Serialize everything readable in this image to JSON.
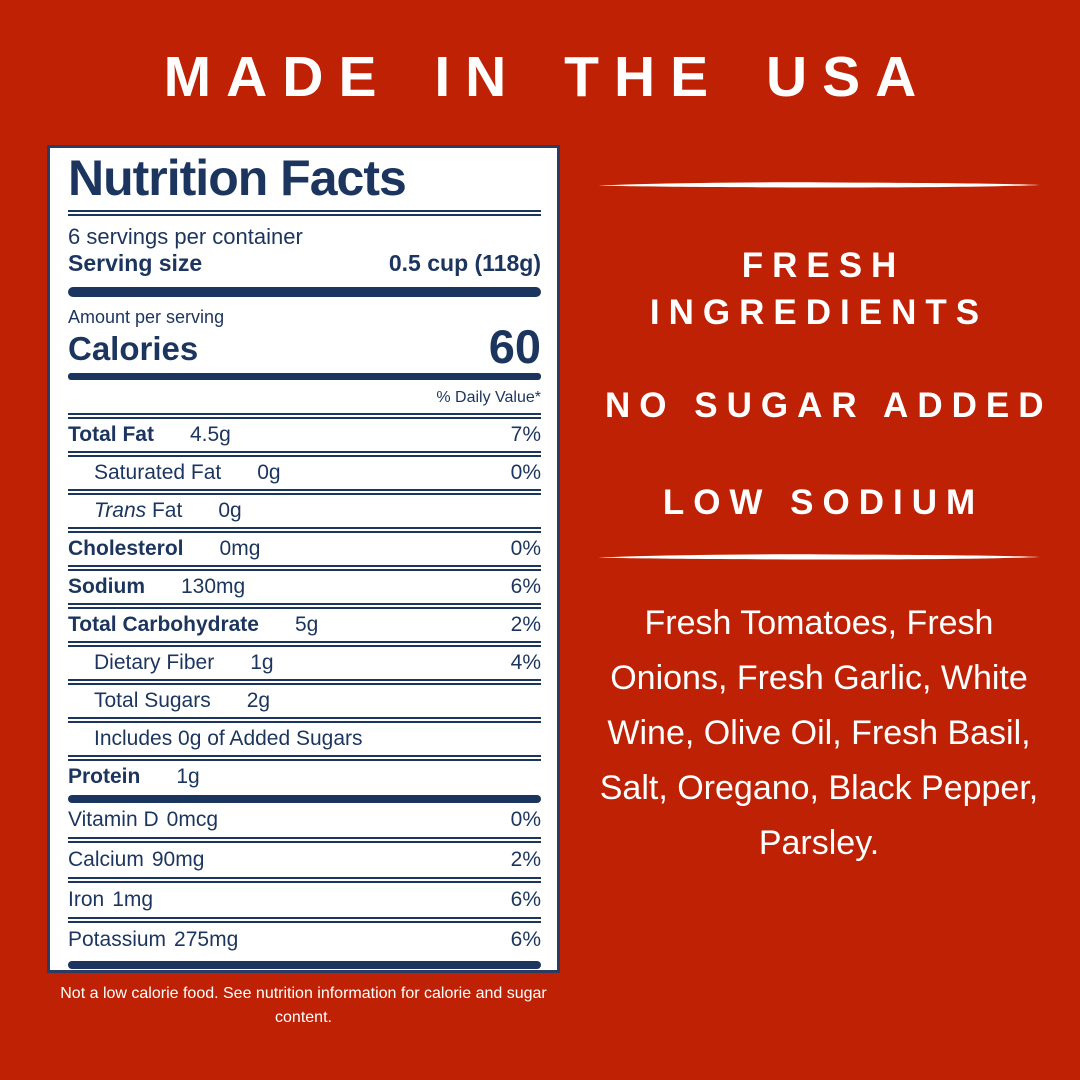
{
  "page": {
    "header": "MADE IN THE USA",
    "bg_color": "#BE2104",
    "accent_color": "#1C355F",
    "text_color": "#FFFFFF"
  },
  "label": {
    "title": "Nutrition Facts",
    "servings_per_container": "6 servings per container",
    "serving_size_label": "Serving size",
    "serving_size_value": "0.5 cup (118g)",
    "amount_per_serving": "Amount per serving",
    "calories_label": "Calories",
    "calories_value": "60",
    "daily_value_header": "% Daily Value*",
    "nutrients": [
      {
        "name": "Total Fat",
        "amount": "4.5g",
        "dv": "7%",
        "bold": true
      },
      {
        "name": "Saturated Fat",
        "amount": "0g",
        "dv": "0%",
        "indent": true
      },
      {
        "name_italic": "Trans",
        "name": "Fat",
        "amount": "0g",
        "dv": "",
        "indent": true
      },
      {
        "name": "Cholesterol",
        "amount": "0mg",
        "dv": "0%",
        "bold": true
      },
      {
        "name": "Sodium",
        "amount": "130mg",
        "dv": "6%",
        "bold": true
      },
      {
        "name": "Total Carbohydrate",
        "amount": "5g",
        "dv": "2%",
        "bold": true
      },
      {
        "name": "Dietary Fiber",
        "amount": "1g",
        "dv": "4%",
        "indent": true
      },
      {
        "name": "Total Sugars",
        "amount": "2g",
        "dv": "",
        "indent": true
      },
      {
        "name": "Includes 0g of Added Sugars",
        "amount": "",
        "dv": "",
        "indent": true
      },
      {
        "name": "Protein",
        "amount": "1g",
        "dv": "",
        "bold": true
      }
    ],
    "vitamins": [
      {
        "name": "Vitamin D",
        "amount": "0mcg",
        "dv": "0%"
      },
      {
        "name": "Calcium",
        "amount": "90mg",
        "dv": "2%"
      },
      {
        "name": "Iron",
        "amount": "1mg",
        "dv": "6%"
      },
      {
        "name": "Potassium",
        "amount": "275mg",
        "dv": "6%"
      }
    ],
    "footnote": "Not a low calorie food. See nutrition information for calorie and sugar content."
  },
  "right_panel": {
    "claims": [
      "FRESH INGREDIENTS",
      "NO SUGAR ADDED",
      "LOW SODIUM"
    ],
    "ingredients": "Fresh Tomatoes, Fresh Onions, Fresh Garlic, White Wine, Olive Oil, Fresh Basil, Salt, Oregano, Black Pepper, Parsley."
  }
}
